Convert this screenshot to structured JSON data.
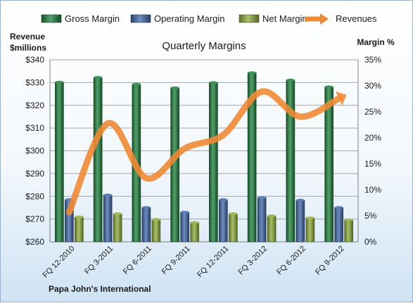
{
  "chart_data": {
    "type": "bar",
    "title": "Quarterly Margins",
    "ylabel_left": "Revenue\n$millions",
    "ylabel_right": "Margin %",
    "footer": "Papa John's International",
    "categories": [
      "FQ 12-2010",
      "FQ 3-2011",
      "FQ 6-2011",
      "FQ 9-2011",
      "FQ 12-2011",
      "FQ 3-2012",
      "FQ 6-2012",
      "FQ 9-2012"
    ],
    "left_axis": {
      "min": 260,
      "max": 340,
      "step": 10,
      "prefix": "$"
    },
    "right_axis": {
      "min": 0,
      "max": 35,
      "step": 5,
      "suffix": "%"
    },
    "legend_position": "top",
    "series": [
      {
        "name": "Gross Margin",
        "kind": "bar",
        "axis": "right",
        "color": "#1e7f3c",
        "values": [
          30.7,
          31.6,
          30.3,
          29.6,
          30.6,
          32.5,
          31.1,
          29.8
        ]
      },
      {
        "name": "Operating Margin",
        "kind": "bar",
        "axis": "right",
        "color": "#3f67a8",
        "values": [
          8.1,
          9.0,
          6.6,
          5.7,
          8.1,
          8.5,
          8.0,
          6.6
        ]
      },
      {
        "name": "Net Margin",
        "kind": "bar",
        "axis": "right",
        "color": "#8eab3a",
        "values": [
          4.8,
          5.4,
          4.3,
          3.7,
          5.4,
          5.0,
          4.6,
          4.2
        ]
      },
      {
        "name": "Revenues",
        "kind": "line",
        "axis": "left",
        "color": "#ee8a35",
        "values": [
          273,
          312,
          288,
          301,
          307,
          326,
          315,
          323
        ]
      }
    ],
    "grid": true
  }
}
